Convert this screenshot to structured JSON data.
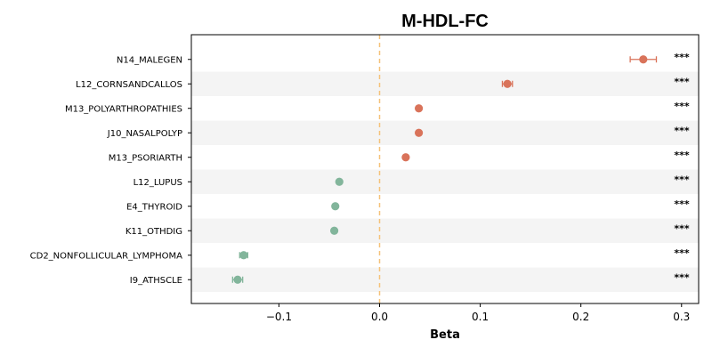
{
  "chart_data": {
    "type": "scatter",
    "title": "M-HDL-FC",
    "xlabel": "Beta",
    "ylabel": "",
    "xlim": [
      -0.187,
      0.317
    ],
    "xticks": [
      -0.1,
      0.0,
      0.1,
      0.2,
      0.3
    ],
    "xtick_labels": [
      "−0.1",
      "0.0",
      "0.1",
      "0.2",
      "0.3"
    ],
    "reference_line": 0.0,
    "reference_line_color": "#f5c27a",
    "positive_color": "#d9735a",
    "negative_color": "#82b59b",
    "band_color": "#f4f4f4",
    "significance_labels": [
      "***",
      "***",
      "***",
      "***",
      "***",
      "***",
      "***",
      "***",
      "***",
      "***"
    ],
    "categories": [
      "N14_MALEGEN",
      "L12_CORNSANDCALLOS",
      "M13_POLYARTHROPATHIES",
      "J10_NASALPOLYP",
      "M13_PSORIARTH",
      "L12_LUPUS",
      "E4_THYROID",
      "K11_OTHDIG",
      "CD2_NONFOLLICULAR_LYMPHOMA",
      "I9_ATHSCLE"
    ],
    "values": [
      0.262,
      0.127,
      0.039,
      0.039,
      0.026,
      -0.04,
      -0.044,
      -0.045,
      -0.135,
      -0.141
    ],
    "ci_low": [
      0.249,
      0.122,
      0.037,
      0.037,
      0.024,
      -0.042,
      -0.046,
      -0.047,
      -0.139,
      -0.146
    ],
    "ci_high": [
      0.275,
      0.132,
      0.041,
      0.041,
      0.028,
      -0.038,
      -0.042,
      -0.043,
      -0.131,
      -0.136
    ]
  }
}
